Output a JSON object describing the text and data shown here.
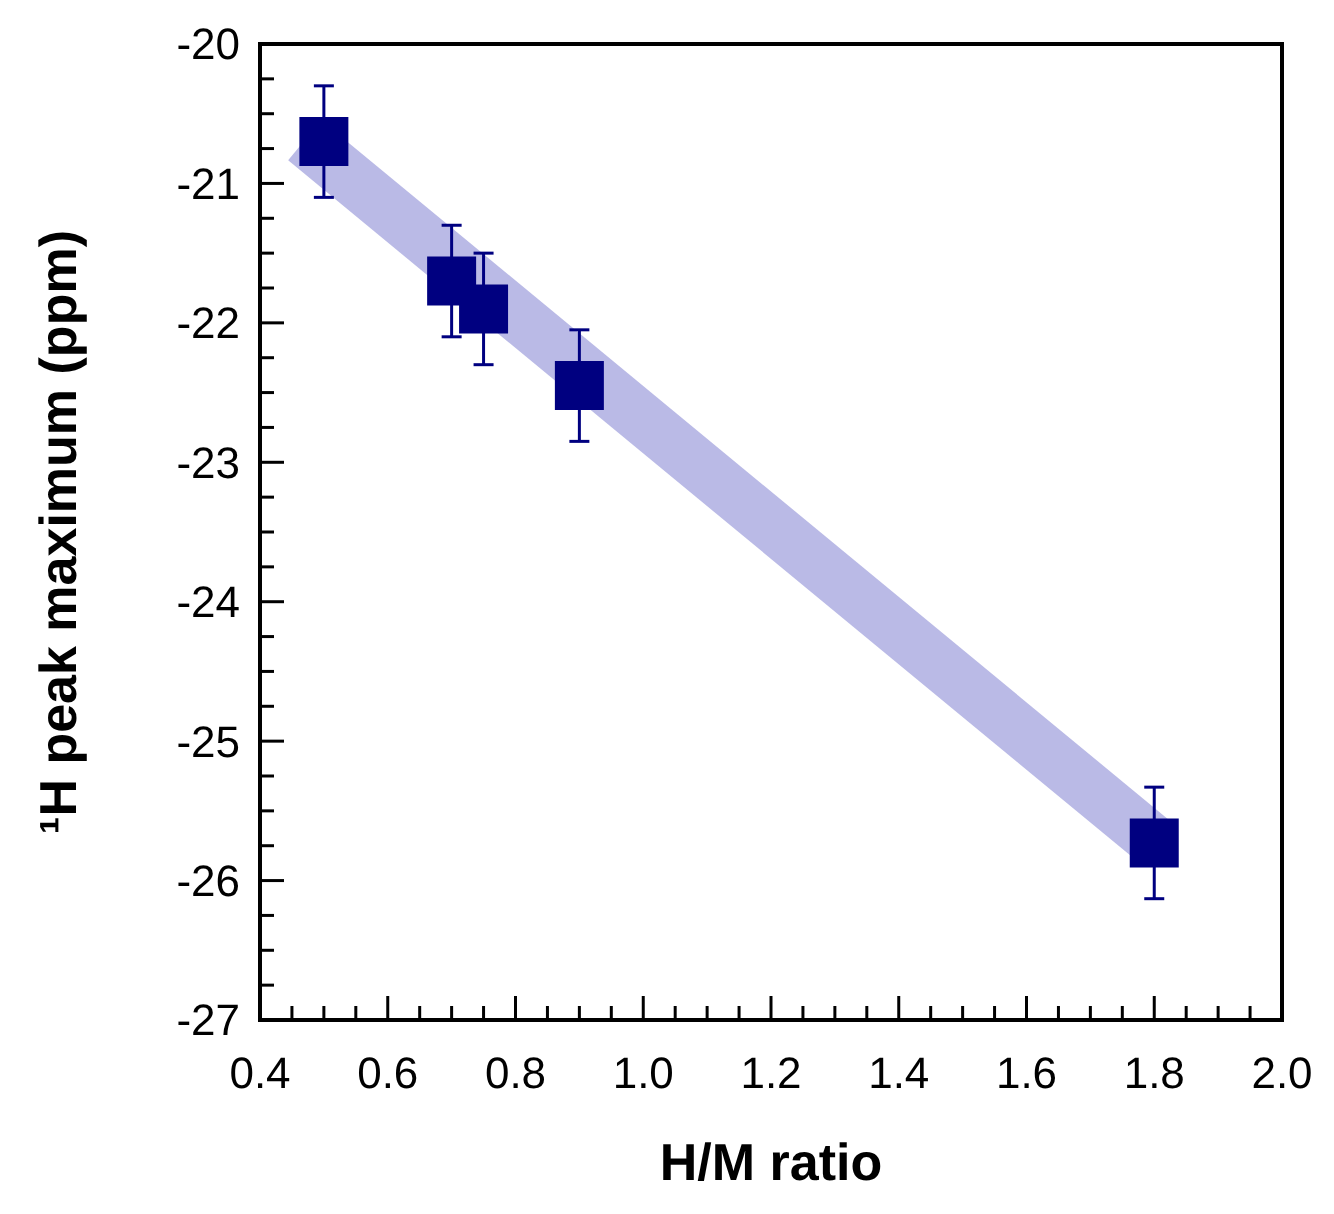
{
  "chart_data": {
    "type": "scatter",
    "xlabel": "H/M ratio",
    "ylabel": "¹H peak maximum (ppm)",
    "xlim": [
      0.4,
      2.0
    ],
    "ylim": [
      -27,
      -20
    ],
    "xticks": [
      0.4,
      {
        "value": 0.45,
        "label": null
      },
      {
        "value": 0.5,
        "label": null
      },
      {
        "value": 0.55,
        "label": null
      },
      0.6,
      {
        "value": 0.65,
        "label": null
      },
      {
        "value": 0.7,
        "label": null
      },
      {
        "value": 0.75,
        "label": null
      },
      0.8,
      {
        "value": 0.85,
        "label": null
      },
      {
        "value": 0.9,
        "label": null
      },
      {
        "value": 0.95,
        "label": null
      },
      {
        "value": 1.0,
        "label": "1.0"
      },
      {
        "value": 1.05,
        "label": null
      },
      {
        "value": 1.1,
        "label": null
      },
      {
        "value": 1.15,
        "label": null
      },
      1.2,
      {
        "value": 1.25,
        "label": null
      },
      {
        "value": 1.3,
        "label": null
      },
      {
        "value": 1.35,
        "label": null
      },
      1.4,
      {
        "value": 1.45,
        "label": null
      },
      {
        "value": 1.5,
        "label": null
      },
      {
        "value": 1.55,
        "label": null
      },
      1.6,
      {
        "value": 1.65,
        "label": null
      },
      {
        "value": 1.7,
        "label": null
      },
      {
        "value": 1.75,
        "label": null
      },
      1.8,
      {
        "value": 1.85,
        "label": null
      },
      {
        "value": 1.9,
        "label": null
      },
      {
        "value": 1.95,
        "label": null
      },
      {
        "value": 2.0,
        "label": "2.0"
      }
    ],
    "yticks": [
      -27,
      {
        "value": -26.75,
        "label": null
      },
      {
        "value": -26.5,
        "label": null
      },
      {
        "value": -26.25,
        "label": null
      },
      -26,
      {
        "value": -25.75,
        "label": null
      },
      {
        "value": -25.5,
        "label": null
      },
      {
        "value": -25.25,
        "label": null
      },
      -25,
      {
        "value": -24.75,
        "label": null
      },
      {
        "value": -24.5,
        "label": null
      },
      {
        "value": -24.25,
        "label": null
      },
      -24,
      {
        "value": -23.75,
        "label": null
      },
      {
        "value": -23.5,
        "label": null
      },
      {
        "value": -23.25,
        "label": null
      },
      -23,
      {
        "value": -22.75,
        "label": null
      },
      {
        "value": -22.5,
        "label": null
      },
      {
        "value": -22.25,
        "label": null
      },
      -22,
      {
        "value": -21.75,
        "label": null
      },
      {
        "value": -21.5,
        "label": null
      },
      {
        "value": -21.25,
        "label": null
      },
      -21,
      {
        "value": -20.75,
        "label": null
      },
      {
        "value": -20.5,
        "label": null
      },
      {
        "value": -20.25,
        "label": null
      },
      -20
    ],
    "grid": false,
    "series": [
      {
        "type": "line",
        "color": "#babae6",
        "x": [
          0.47,
          1.8
        ],
        "values": [
          -20.69,
          -25.72
        ]
      },
      {
        "color": "#000080",
        "marker": "square",
        "x": [
          0.5,
          0.7,
          0.75,
          0.9,
          1.8
        ],
        "values": [
          -20.7,
          -21.7,
          -21.9,
          -22.45,
          -25.73
        ],
        "errors": [
          0.4,
          0.4,
          0.4,
          0.4,
          0.4
        ]
      }
    ]
  }
}
